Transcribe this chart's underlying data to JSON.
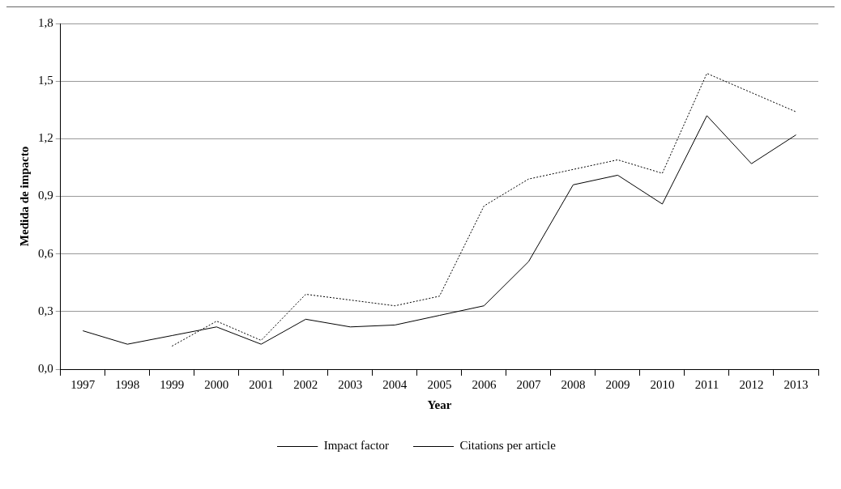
{
  "chart_data": {
    "type": "line",
    "xlabel": "Year",
    "ylabel": "Medida de impacto",
    "categories": [
      "1997",
      "1998",
      "1999",
      "2000",
      "2001",
      "2002",
      "2003",
      "2004",
      "2005",
      "2006",
      "2007",
      "2008",
      "2009",
      "2010",
      "2011",
      "2012",
      "2013"
    ],
    "series": [
      {
        "name": "Impact factor",
        "color": "#000000",
        "line_style": "solid",
        "values": [
          0.2,
          0.13,
          0.175,
          0.22,
          0.13,
          0.26,
          0.22,
          0.23,
          0.28,
          0.33,
          0.56,
          0.96,
          1.01,
          0.86,
          1.32,
          1.07,
          1.22
        ]
      },
      {
        "name": "Citations per article",
        "color": "#000000",
        "line_style": "dotted",
        "values": [
          null,
          null,
          0.12,
          0.25,
          0.15,
          0.39,
          0.36,
          0.33,
          0.38,
          0.85,
          0.99,
          1.04,
          1.09,
          1.02,
          1.54,
          1.44,
          1.34
        ]
      }
    ],
    "ylim": [
      0,
      1.8
    ],
    "yticks": [
      {
        "value": 0,
        "label": "0,0"
      },
      {
        "value": 0.3,
        "label": "0,3"
      },
      {
        "value": 0.6,
        "label": "0,6"
      },
      {
        "value": 0.9,
        "label": "0,9"
      },
      {
        "value": 1.2,
        "label": "1,2"
      },
      {
        "value": 1.5,
        "label": "1,5"
      },
      {
        "value": 1.8,
        "label": "1,8"
      }
    ],
    "grid": "y",
    "legend": "bottom",
    "marker": "none"
  }
}
